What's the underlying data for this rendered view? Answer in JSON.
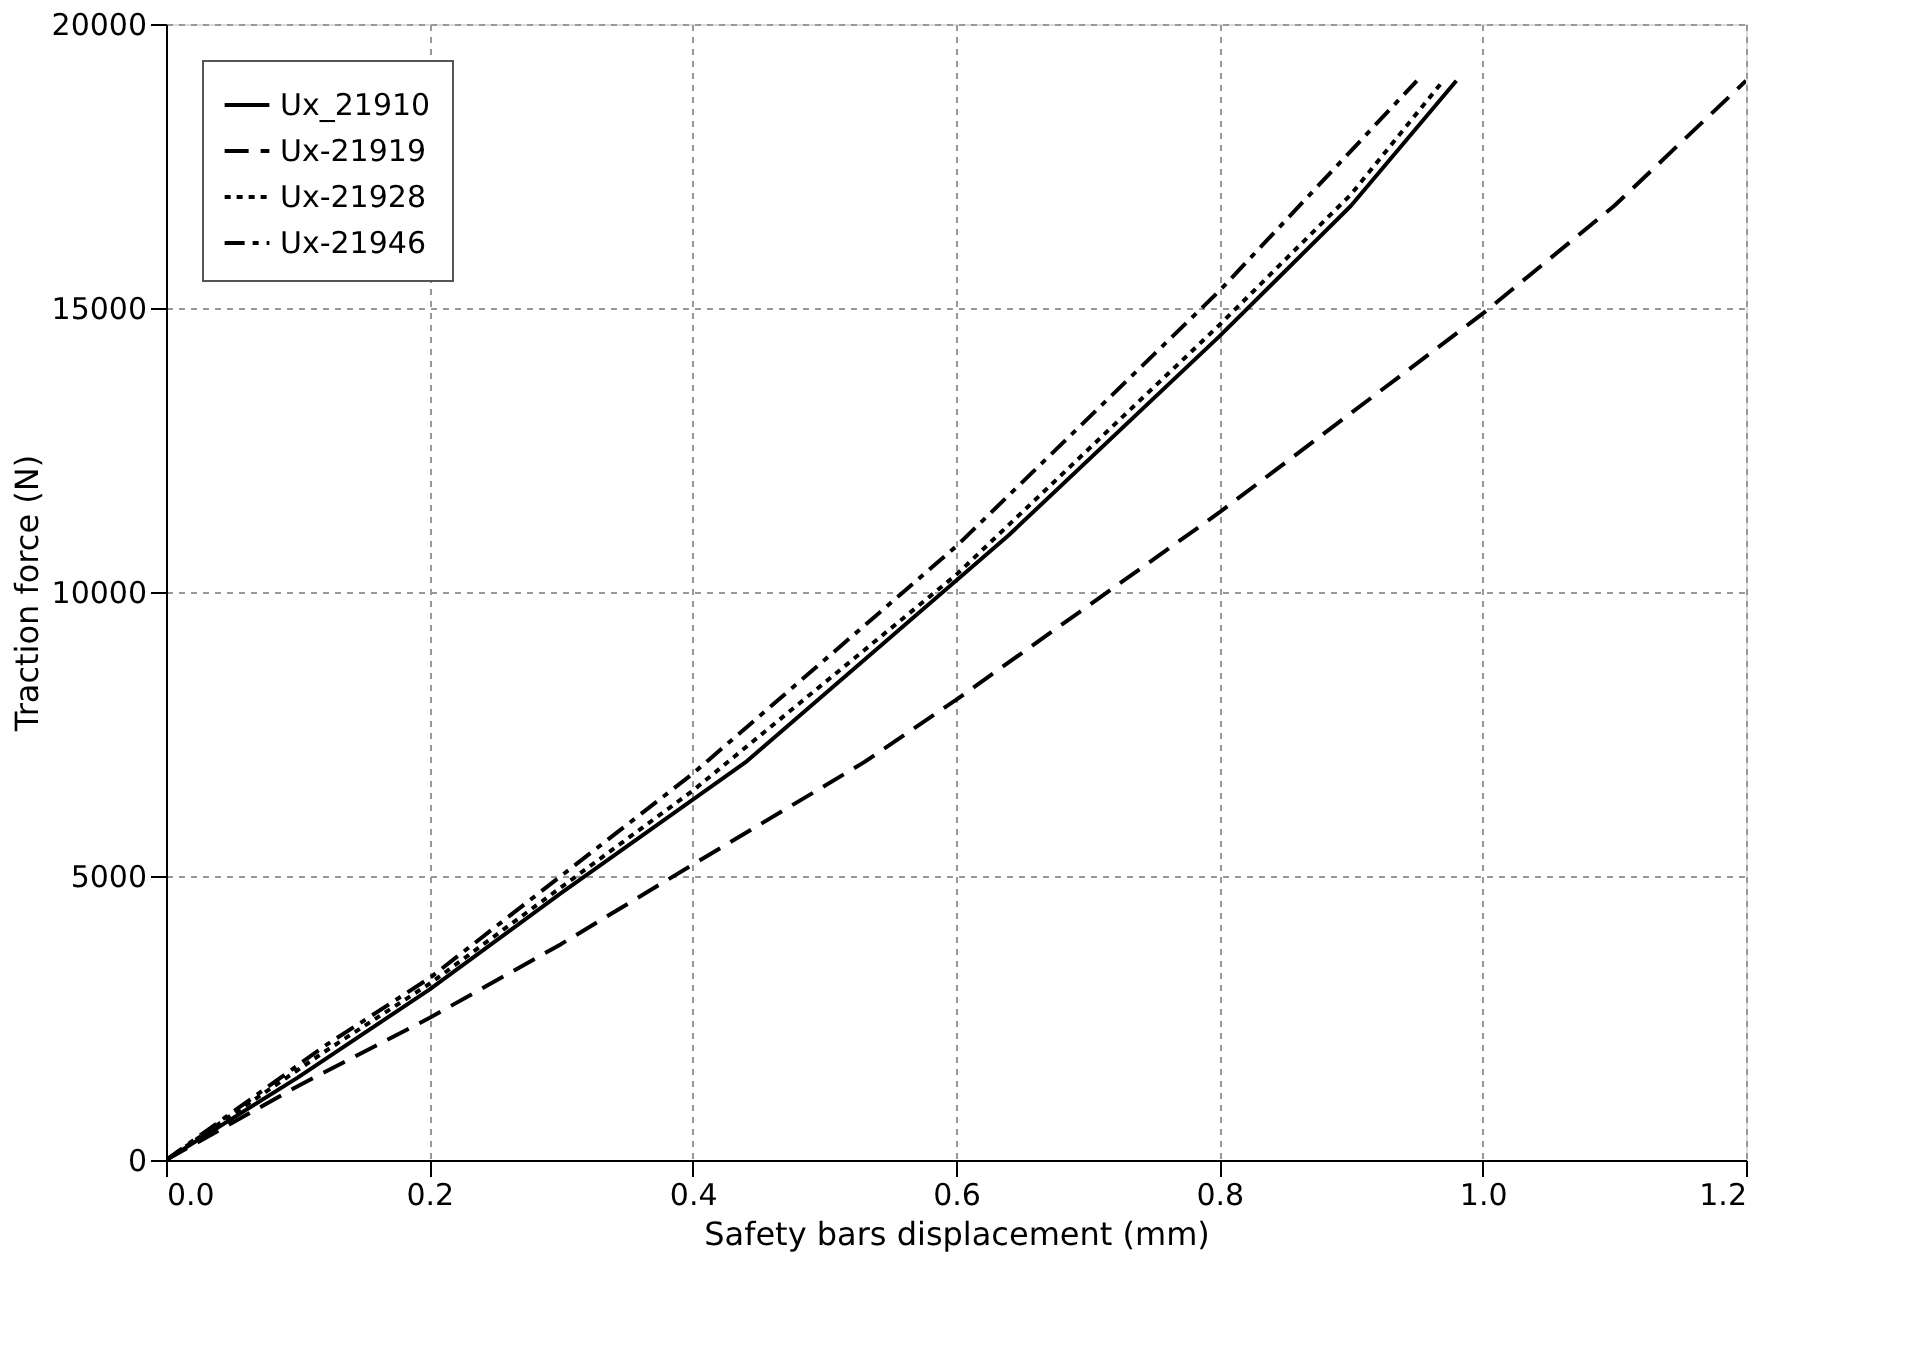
{
  "chart_data": {
    "type": "line",
    "xlabel": "Safety bars displacement (mm)",
    "ylabel": "Traction force (N)",
    "xlim": [
      0,
      1.2
    ],
    "xticks": [
      {
        "value": 0,
        "label": "0.0"
      },
      0.2,
      0.4,
      0.6,
      0.8,
      {
        "value": 1,
        "label": "1.0"
      },
      1.2
    ],
    "ylim": [
      0,
      20000
    ],
    "yticks": [
      0,
      {
        "value": 5000,
        "label": "5000"
      },
      {
        "value": 10000,
        "label": "10000"
      },
      {
        "value": 15000,
        "label": "15000"
      },
      {
        "value": 20000,
        "label": "20000"
      }
    ],
    "grid": true,
    "legend": "top left",
    "marker": "none",
    "series": [
      {
        "name": "Ux_21910",
        "color": "#000000",
        "line_style": "solid",
        "x": [
          0,
          0.1,
          0.2,
          0.3,
          0.44,
          0.6,
          0.64,
          0.8,
          0.9,
          0.98
        ],
        "values": [
          0,
          1450,
          3000,
          4700,
          7000,
          10200,
          11000,
          14500,
          16800,
          19000
        ]
      },
      {
        "name": "Ux-21919",
        "color": "#000000",
        "line_style": "dashed",
        "x": [
          0,
          0.1,
          0.2,
          0.3,
          0.4,
          0.53,
          0.6,
          0.8,
          1.0,
          1.1,
          1.2
        ],
        "values": [
          0,
          1300,
          2500,
          3800,
          5200,
          7000,
          8100,
          11400,
          14900,
          16800,
          19000
        ]
      },
      {
        "name": "Ux-21928",
        "color": "#000000",
        "line_style": "dotted",
        "x": [
          0,
          0.12,
          0.2,
          0.4,
          0.6,
          0.8,
          0.9,
          0.97
        ],
        "values": [
          0,
          1900,
          3100,
          6500,
          10300,
          14700,
          17000,
          19000
        ]
      },
      {
        "name": "Ux-21946",
        "color": "#000000",
        "line_style": "dashdot",
        "x": [
          0,
          0.12,
          0.2,
          0.4,
          0.6,
          0.8,
          0.95
        ],
        "values": [
          0,
          2000,
          3200,
          6800,
          10800,
          15300,
          19000
        ]
      }
    ]
  }
}
